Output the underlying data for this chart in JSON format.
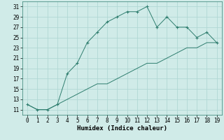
{
  "xlabel": "Humidex (Indice chaleur)",
  "x": [
    0,
    1,
    2,
    3,
    4,
    5,
    6,
    7,
    8,
    9,
    10,
    11,
    12,
    13,
    14,
    15,
    16,
    17,
    18,
    19
  ],
  "y_curve": [
    12,
    11,
    11,
    12,
    18,
    20,
    24,
    26,
    28,
    29,
    30,
    30,
    31,
    27,
    29,
    27,
    27,
    25,
    26,
    24
  ],
  "y_line": [
    12,
    11,
    11,
    12,
    13,
    14,
    15,
    16,
    16,
    17,
    18,
    19,
    20,
    20,
    21,
    22,
    23,
    23,
    24,
    24
  ],
  "color": "#2e7d6e",
  "bg_color": "#d0ebe8",
  "grid_color": "#b0d8d4",
  "ylim": [
    10,
    32
  ],
  "yticks": [
    11,
    13,
    15,
    17,
    19,
    21,
    23,
    25,
    27,
    29,
    31
  ],
  "xlim": [
    -0.5,
    19.5
  ],
  "xticks": [
    0,
    1,
    2,
    3,
    4,
    5,
    6,
    7,
    8,
    9,
    10,
    11,
    12,
    13,
    14,
    15,
    16,
    17,
    18,
    19
  ],
  "tick_fontsize": 5.5,
  "label_fontsize": 6.5,
  "title_fontsize": 6.0
}
